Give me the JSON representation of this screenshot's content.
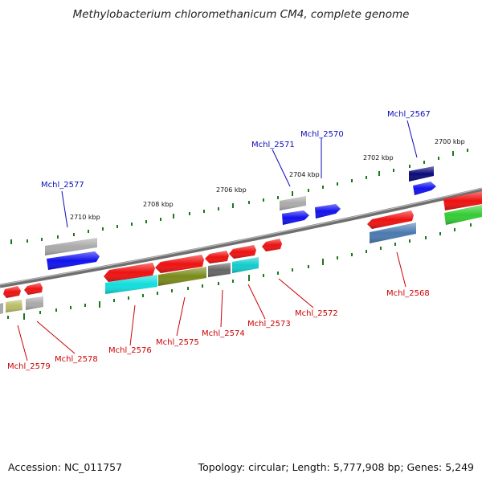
{
  "title": "Methylobacterium chloromethanicum CM4, complete genome",
  "footer": {
    "accession": "Accession: NC_011757",
    "summary": "Topology: circular; Length: 5,777,908 bp; Genes: 5,249"
  },
  "ticks": [
    "2700 kbp",
    "2702 kbp",
    "2704 kbp",
    "2706 kbp",
    "2708 kbp",
    "2710 kbp"
  ],
  "forward_labels": [
    "Mchl_2567",
    "Mchl_2570",
    "Mchl_2571",
    "Mchl_2577"
  ],
  "reverse_labels": [
    "Mchl_2568",
    "Mchl_2572",
    "Mchl_2573",
    "Mchl_2574",
    "Mchl_2575",
    "Mchl_2576",
    "Mchl_2578",
    "Mchl_2579"
  ],
  "colors": {
    "backbone": "#777777",
    "tick": "#1a7a1a",
    "forward_label": "#0b0bb8",
    "reverse_label": "#cc0000",
    "cds_red": "#ee1111",
    "cds_blue": "#1111ee",
    "cds_navy": "#0a0a7a",
    "cds_gray": "#aaaaaa",
    "cds_cyan": "#11dddd",
    "cds_olive": "#7a8a1a",
    "cds_darkgray": "#666666",
    "cds_steelblue": "#4a7ab0",
    "cds_green": "#33cc33",
    "cds_khaki": "#bbbb66"
  }
}
